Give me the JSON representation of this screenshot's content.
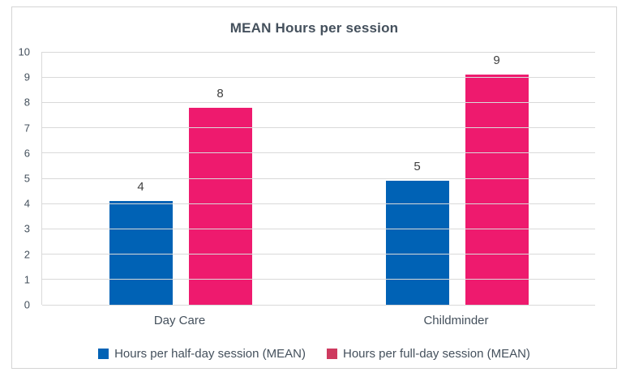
{
  "chart_data": {
    "type": "bar",
    "title": "MEAN Hours per session",
    "categories": [
      "Day Care",
      "Childminder"
    ],
    "series": [
      {
        "name": "Hours per half-day session (MEAN)",
        "values": [
          4.1,
          4.9
        ],
        "data_labels": [
          "4",
          "5"
        ],
        "color": "#0062b5",
        "legend_swatch_color": "#0062b5"
      },
      {
        "name": "Hours per full-day session (MEAN)",
        "values": [
          7.8,
          9.1
        ],
        "data_labels": [
          "8",
          "9"
        ],
        "color": "#ee1a6e",
        "legend_swatch_color": "#ce3a5f"
      }
    ],
    "xlabel": "",
    "ylabel": "",
    "ylim": [
      0,
      10
    ],
    "ytick_step": 1,
    "yticks": [
      "0",
      "1",
      "2",
      "3",
      "4",
      "5",
      "6",
      "7",
      "8",
      "9",
      "10"
    ],
    "grid": true,
    "legend_position": "bottom"
  },
  "style": {
    "gridline_color": "#d9d9d9",
    "frame_border_color": "#d4d4d4",
    "title_color": "#44505c",
    "data_label_color": "#404040"
  }
}
